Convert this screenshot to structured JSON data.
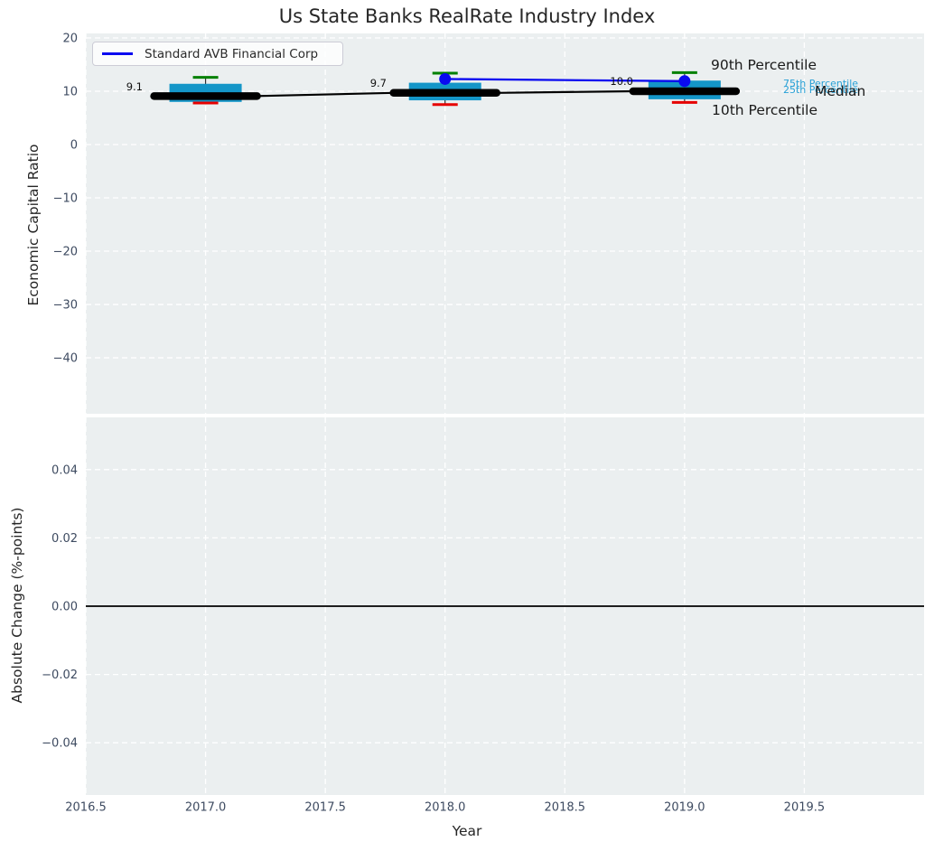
{
  "chart_data": {
    "type": "boxplot",
    "title": "Us State Banks RealRate Industry Index",
    "x": {
      "label": "Year",
      "xlim": [
        2016.5,
        2020.0
      ],
      "ticks": [
        {
          "v": 2016.5,
          "label": "2016.5"
        },
        {
          "v": 2017.0,
          "label": "2017.0"
        },
        {
          "v": 2017.5,
          "label": "2017.5"
        },
        {
          "v": 2018.0,
          "label": "2018.0"
        },
        {
          "v": 2018.5,
          "label": "2018.5"
        },
        {
          "v": 2019.0,
          "label": "2019.0"
        },
        {
          "v": 2019.5,
          "label": "2019.5"
        }
      ]
    },
    "top": {
      "ylabel": "Economic Capital Ratio",
      "ylim": [
        -50.5,
        20.85
      ],
      "yticks": [
        {
          "v": 20,
          "label": "20"
        },
        {
          "v": 10,
          "label": "10"
        },
        {
          "v": 0,
          "label": "0"
        },
        {
          "v": -10,
          "label": "−10"
        },
        {
          "v": -20,
          "label": "−20"
        },
        {
          "v": -30,
          "label": "−30"
        },
        {
          "v": -40,
          "label": "−40"
        }
      ],
      "years": [
        {
          "year": 2017,
          "p10": 7.8,
          "p25": 8.0,
          "median": 9.1,
          "p75": 11.4,
          "p90": 12.6,
          "median_label": "9.1"
        },
        {
          "year": 2018,
          "p10": 7.5,
          "p25": 8.3,
          "median": 9.7,
          "p75": 11.6,
          "p90": 13.4,
          "median_label": "9.7"
        },
        {
          "year": 2019,
          "p10": 7.9,
          "p25": 8.5,
          "median": 10.0,
          "p75": 12.0,
          "p90": 13.5,
          "median_label": "10.0"
        }
      ],
      "company": {
        "name": "Standard AVB Financial Corp",
        "x": [
          2018,
          2019
        ],
        "y": [
          12.3,
          11.9
        ]
      },
      "legend": {
        "label": "Standard AVB Financial Corp"
      },
      "annotations": {
        "p90": "90th Percentile",
        "p75": "75th Percentile",
        "p25": "25th Percentile",
        "median": "Median",
        "p10": "10th Percentile"
      }
    },
    "bottom": {
      "ylabel": "Absolute Change (%-points)",
      "ylim": [
        -0.0553,
        0.0553
      ],
      "yticks": [
        {
          "v": 0.04,
          "label": "0.04"
        },
        {
          "v": 0.02,
          "label": "0.02"
        },
        {
          "v": 0.0,
          "label": "0.00"
        },
        {
          "v": -0.02,
          "label": "−0.02"
        },
        {
          "v": -0.04,
          "label": "−0.04"
        }
      ],
      "zero_line": 0.0
    },
    "colors": {
      "box": "#1496c8",
      "p90_cap": "#008000",
      "p10_cap": "#e60000",
      "median_line": "#000000",
      "company": "#0a0af0",
      "axes_bg": "#ebeff0",
      "grid": "#ffffff",
      "tick_text": "#3e4b61",
      "zero_line": "#000000",
      "percentile_text": "#27a0d6"
    }
  }
}
